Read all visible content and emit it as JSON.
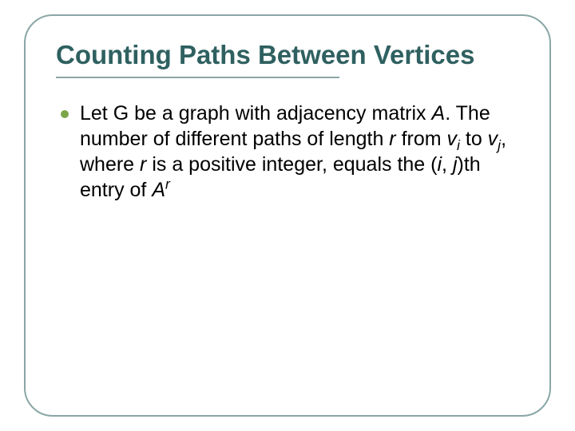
{
  "slide": {
    "title": "Counting Paths Between Vertices",
    "bullet_color": "#7aa64a",
    "title_color": "#2f6060",
    "underline_color": "#8aa6a6",
    "frame_border_color": "#8aa6a6",
    "body": {
      "seg1": "Let G be a graph with adjacency matrix ",
      "A": "A",
      "seg2": ".  The number of different paths of length ",
      "r1": "r",
      "seg3": " from ",
      "vi_base": "v",
      "vi_sub": "i",
      "seg4": " to ",
      "vj_base": "v",
      "vj_sub": "j",
      "seg5": ", where ",
      "r2": "r",
      "seg6": " is a positive integer, equals the (",
      "i": "i",
      "seg7": ", ",
      "j": "j",
      "seg8": ")th entry of ",
      "A2": "A",
      "r_sup": "r"
    }
  }
}
